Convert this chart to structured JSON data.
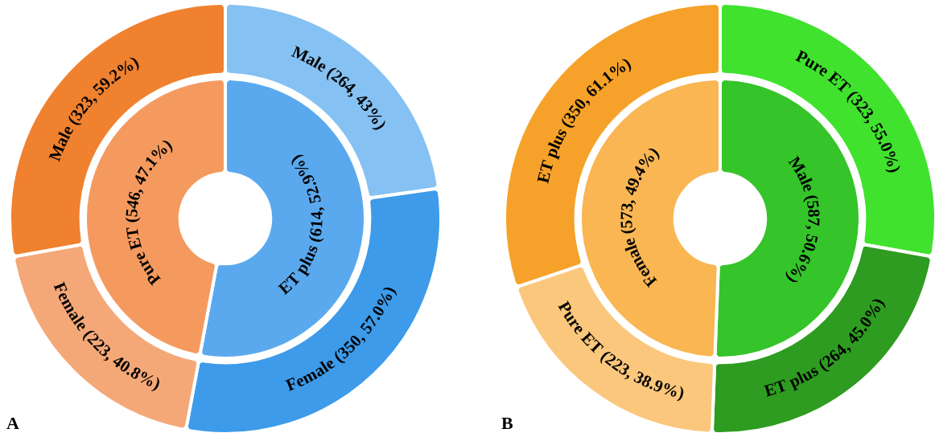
{
  "chart_data": [
    {
      "type": "donut",
      "categories": [
        "ET plus (614, 52.9%)",
        "Pure ET (546, 47.1%)"
      ],
      "values": [
        614,
        546
      ],
      "colors": [
        "#5aa9ee",
        "#f59a5f"
      ]
    },
    {
      "type": "donut",
      "annotations": [
        "A"
      ],
      "categories": [
        "Male (264, 43%)",
        "Female (350, 57.0%)",
        "Female (223, 40.8%)",
        "Male (323, 59.2%)"
      ],
      "values": [
        264,
        350,
        223,
        323
      ],
      "colors": [
        "#85c1f2",
        "#3d9be9",
        "#f5a877",
        "#f0812f"
      ]
    },
    {
      "type": "donut",
      "categories": [
        "Male (587, 50.6%)",
        "Female (573, 49.4%)"
      ],
      "values": [
        587,
        573
      ],
      "colors": [
        "#35c42a",
        "#f9b653"
      ]
    },
    {
      "type": "donut",
      "annotations": [
        "B"
      ],
      "categories": [
        "Pure ET (323, 55.0%)",
        "ET plus (264, 45.0%)",
        "Pure ET (223, 38.9%)",
        "ET plus (350, 61.1%)"
      ],
      "values": [
        323,
        264,
        223,
        350
      ],
      "colors": [
        "#40e22e",
        "#2e9c20",
        "#fbc77c",
        "#f6a22a"
      ]
    }
  ]
}
